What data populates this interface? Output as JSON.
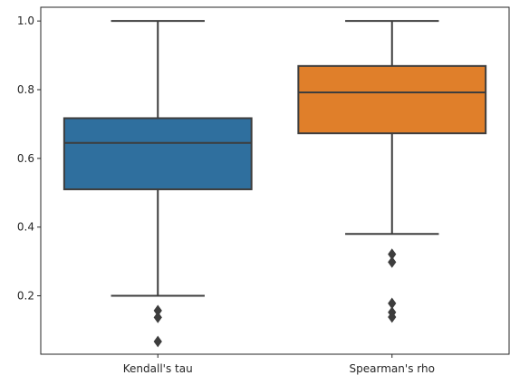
{
  "chart_data": {
    "type": "box",
    "categories": [
      "Kendall's tau",
      "Spearman's rho"
    ],
    "colors": [
      "#2f6f9e",
      "#e07f2a"
    ],
    "edge_color": "#3d3d3d",
    "grid": false,
    "ylim": [
      0.03,
      1.04
    ],
    "yticks": [
      0.2,
      0.4,
      0.6,
      0.8,
      1.0
    ],
    "ytick_labels": [
      "0.2",
      "0.4",
      "0.6",
      "0.8",
      "1.0"
    ],
    "boxes": [
      {
        "whisker_low": 0.2,
        "q1": 0.51,
        "median": 0.645,
        "q3": 0.717,
        "whisker_high": 1.0,
        "outliers": [
          0.157,
          0.137,
          0.067
        ]
      },
      {
        "whisker_low": 0.38,
        "q1": 0.673,
        "median": 0.792,
        "q3": 0.869,
        "whisker_high": 1.0,
        "outliers": [
          0.321,
          0.298,
          0.178,
          0.152,
          0.138
        ]
      }
    ]
  }
}
